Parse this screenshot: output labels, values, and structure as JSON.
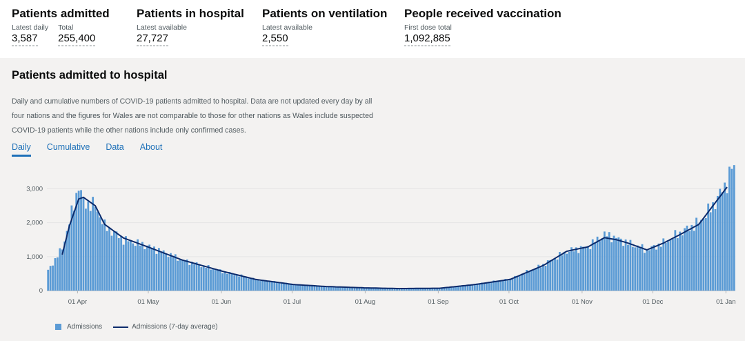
{
  "headline": {
    "admitted": {
      "title": "Patients admitted",
      "daily_label": "Latest daily",
      "daily_value": "3,587",
      "total_label": "Total",
      "total_value": "255,400"
    },
    "in_hospital": {
      "title": "Patients in hospital",
      "label": "Latest available",
      "value": "27,727"
    },
    "ventilation": {
      "title": "Patients on ventilation",
      "label": "Latest available",
      "value": "2,550"
    },
    "vaccination": {
      "title": "People received vaccination",
      "label": "First dose total",
      "value": "1,092,885"
    }
  },
  "panel": {
    "title": "Patients admitted to hospital",
    "description": "Daily and cumulative numbers of COVID-19 patients admitted to hospital. Data are not updated every day by all four nations and the figures for Wales are not comparable to those for other nations as Wales include suspected COVID-19 patients while the other nations include only confirmed cases.",
    "tabs": [
      "Daily",
      "Cumulative",
      "Data",
      "About"
    ],
    "active_tab": "Daily"
  },
  "colors": {
    "bar": "#5b9bd5",
    "line": "#0b2a6b",
    "panel_bg": "#f3f2f1",
    "link": "#1d70b8"
  },
  "chart_data": {
    "type": "bar",
    "title": "Patients admitted to hospital",
    "series_names": [
      "Admissions",
      "Admissions (7-day average)"
    ],
    "x_start": "2020-03-19",
    "x_end": "2021-01-04",
    "x_tick_labels": [
      "01 Apr",
      "01 May",
      "01 Jun",
      "01 Jul",
      "01 Aug",
      "01 Sep",
      "01 Oct",
      "01 Nov",
      "01 Dec",
      "01 Jan"
    ],
    "y_ticks": [
      0,
      1000,
      2000,
      3000
    ],
    "y_tick_labels": [
      "0",
      "1,000",
      "2,000",
      "3,000"
    ],
    "ylim": [
      0,
      3600
    ],
    "xlabel": "",
    "ylabel": "",
    "legend_position": "bottom-left",
    "anchor_values": [
      {
        "date": "2020-03-19",
        "daily": 590,
        "avg": null
      },
      {
        "date": "2020-03-25",
        "daily": 1250,
        "avg": 1060
      },
      {
        "date": "2020-03-28",
        "daily": 2000,
        "avg": 1900
      },
      {
        "date": "2020-04-01",
        "daily": 3100,
        "avg": 2700
      },
      {
        "date": "2020-04-03",
        "daily": 2600,
        "avg": 2750
      },
      {
        "date": "2020-04-08",
        "daily": 2500,
        "avg": 2500
      },
      {
        "date": "2020-04-12",
        "daily": 1900,
        "avg": 1950
      },
      {
        "date": "2020-04-20",
        "daily": 1500,
        "avg": 1550
      },
      {
        "date": "2020-05-01",
        "daily": 1300,
        "avg": 1270
      },
      {
        "date": "2020-05-15",
        "daily": 900,
        "avg": 900
      },
      {
        "date": "2020-06-01",
        "daily": 560,
        "avg": 570
      },
      {
        "date": "2020-06-15",
        "daily": 330,
        "avg": 330
      },
      {
        "date": "2020-07-01",
        "daily": 190,
        "avg": 180
      },
      {
        "date": "2020-07-15",
        "daily": 120,
        "avg": 120
      },
      {
        "date": "2020-08-01",
        "daily": 80,
        "avg": 80
      },
      {
        "date": "2020-08-15",
        "daily": 60,
        "avg": 60
      },
      {
        "date": "2020-09-01",
        "daily": 70,
        "avg": 70
      },
      {
        "date": "2020-09-15",
        "daily": 180,
        "avg": 170
      },
      {
        "date": "2020-10-01",
        "daily": 340,
        "avg": 330
      },
      {
        "date": "2020-10-15",
        "daily": 760,
        "avg": 740
      },
      {
        "date": "2020-10-25",
        "daily": 1150,
        "avg": 1160
      },
      {
        "date": "2020-11-03",
        "daily": 1300,
        "avg": 1290
      },
      {
        "date": "2020-11-10",
        "daily": 1650,
        "avg": 1560
      },
      {
        "date": "2020-11-15",
        "daily": 1550,
        "avg": 1500
      },
      {
        "date": "2020-11-20",
        "daily": 1400,
        "avg": 1400
      },
      {
        "date": "2020-11-28",
        "daily": 1200,
        "avg": 1200
      },
      {
        "date": "2020-12-05",
        "daily": 1400,
        "avg": 1400
      },
      {
        "date": "2020-12-12",
        "daily": 1700,
        "avg": 1650
      },
      {
        "date": "2020-12-20",
        "daily": 2000,
        "avg": 1950
      },
      {
        "date": "2020-12-26",
        "daily": 2500,
        "avg": 2500
      },
      {
        "date": "2021-01-01",
        "daily": 3200,
        "avg": 3050
      },
      {
        "date": "2021-01-03",
        "daily": 3587,
        "avg": null
      }
    ]
  }
}
